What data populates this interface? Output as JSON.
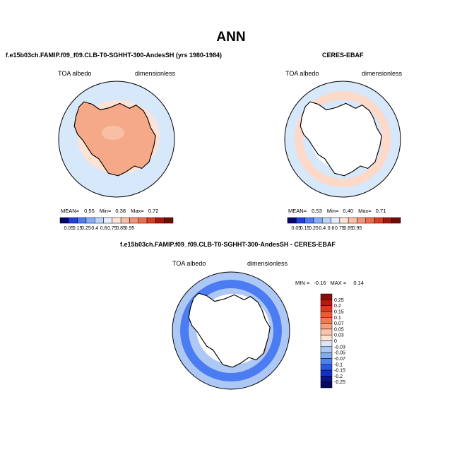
{
  "title": "ANN",
  "panels": [
    {
      "id": "model",
      "header": "f.e15b03ch.FAMIP.f09_f09.CLB-T0-SGHHT-300-AndesSH (yrs 1980-1984)",
      "variable": "TOA albedo",
      "units": "dimensionless",
      "stats": {
        "mean_label": "MEAN=",
        "mean": "0.55",
        "min_label": "Min=",
        "min": "0.38",
        "max_label": "Max=",
        "max": "0.72"
      }
    },
    {
      "id": "obs",
      "header": "CERES-EBAF",
      "variable": "TOA albedo",
      "units": "dimensionless",
      "stats": {
        "mean_label": "MEAN=",
        "mean": "0.53",
        "min_label": "Min=",
        "min": "0.40",
        "max_label": "Max=",
        "max": "0.71"
      }
    },
    {
      "id": "diff",
      "header": "f.e15b03ch.FAMIP.f09_f09.CLB-T0-SGHHT-300-AndesSH - CERES-EBAF",
      "variable": "TOA albedo",
      "units": "dimensionless",
      "stats": {
        "min_label": "MIN =",
        "min": "-0.16",
        "max_label": "MAX =",
        "max": "0.14"
      }
    }
  ],
  "colorbar_abs": {
    "labels": [
      "0.05",
      "0.15",
      "0.25",
      "0.4",
      "0.6",
      "0.75",
      "0.85",
      "0.95"
    ],
    "colors": [
      "#08026e",
      "#1f3fe0",
      "#4b7cf2",
      "#84aef5",
      "#bcd4f8",
      "#e4eefc",
      "#fde3d6",
      "#fbbfa6",
      "#f59478",
      "#ee6d4b",
      "#d83d22",
      "#a4170c",
      "#6e0d05"
    ]
  },
  "colorbar_diff": {
    "labels": [
      "0.25",
      "0.2",
      "0.15",
      "0.1",
      "0.07",
      "0.05",
      "0.03",
      "0",
      "-0.03",
      "-0.05",
      "-0.07",
      "-0.1",
      "-0.15",
      "-0.2",
      "-0.25"
    ],
    "colors": [
      "#8c0d06",
      "#b8190d",
      "#da3a20",
      "#ed5a33",
      "#f47a50",
      "#f79e7a",
      "#fbc4aa",
      "#fde4d4",
      "#dbe7fb",
      "#aec8f6",
      "#82a9f2",
      "#4f80ec",
      "#2b58e2",
      "#1330c4",
      "#0a138c",
      "#050a5e"
    ]
  },
  "map_colors": {
    "ocean_background": "#d8e8fb",
    "model_land": "#f5a989",
    "model_high": "#f8bfa3",
    "obs_ring": "#fcd9c8",
    "obs_inner": "#ffffff",
    "diff_blue": "#4b7cf2",
    "diff_light": "#aec8f6",
    "diff_red": "#ee6d4b"
  }
}
